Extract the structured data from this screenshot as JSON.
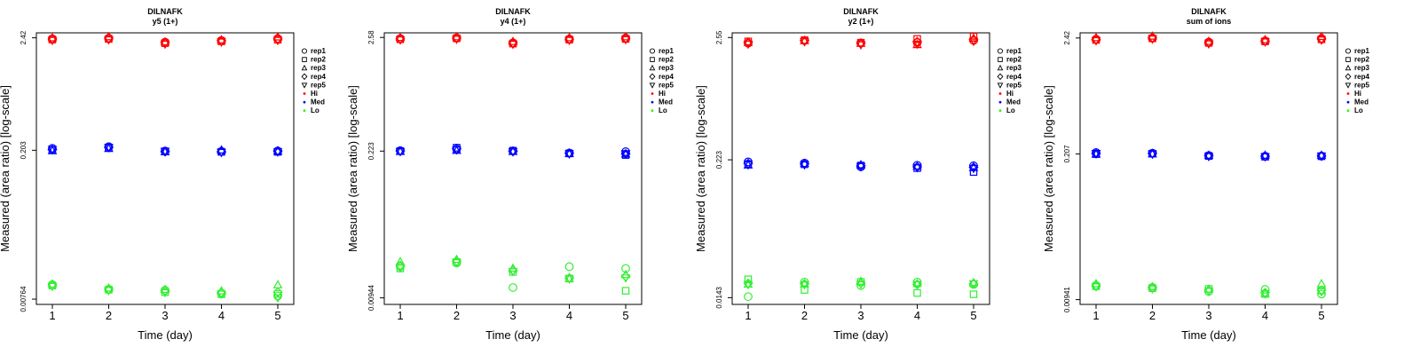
{
  "colors": {
    "Hi": "#ff0000",
    "Med": "#0000ff",
    "Lo": "#33ee33"
  },
  "legend": {
    "markers": [
      {
        "label": "rep1",
        "shape": "circle"
      },
      {
        "label": "rep2",
        "shape": "square"
      },
      {
        "label": "rep3",
        "shape": "triangle-up"
      },
      {
        "label": "rep4",
        "shape": "diamond"
      },
      {
        "label": "rep5",
        "shape": "triangle-down"
      }
    ],
    "levels": [
      "Hi",
      "Med",
      "Lo"
    ]
  },
  "chart_data": [
    {
      "type": "scatter",
      "title": "DILNAFK",
      "subtitle": "y5 (1+)",
      "xlabel": "Time (day)",
      "ylabel": "Measured (area ratio) [log-scale]",
      "x": [
        1,
        2,
        3,
        4,
        5
      ],
      "xtick_labels": [
        "1",
        "2",
        "3",
        "4",
        "5"
      ],
      "ylim": [
        0.0068,
        2.7
      ],
      "yscale": "log",
      "yticks": [
        0.00764,
        0.203,
        2.42
      ],
      "ytick_labels": [
        "0.00764",
        "0.203",
        "2.42"
      ],
      "series": [
        {
          "level": "Hi",
          "rep": "rep1",
          "values": [
            2.37,
            2.4,
            2.2,
            2.28,
            2.38
          ]
        },
        {
          "level": "Hi",
          "rep": "rep2",
          "values": [
            2.33,
            2.36,
            2.15,
            2.24,
            2.32
          ]
        },
        {
          "level": "Hi",
          "rep": "rep3",
          "values": [
            2.4,
            2.46,
            2.2,
            2.3,
            2.45
          ]
        },
        {
          "level": "Hi",
          "rep": "rep4",
          "values": [
            2.35,
            2.4,
            2.18,
            2.27,
            2.36
          ]
        },
        {
          "level": "Hi",
          "rep": "rep5",
          "values": [
            2.3,
            2.33,
            2.12,
            2.22,
            2.3
          ]
        },
        {
          "level": "Med",
          "rep": "rep1",
          "values": [
            0.212,
            0.22,
            0.2,
            0.198,
            0.2
          ]
        },
        {
          "level": "Med",
          "rep": "rep2",
          "values": [
            0.205,
            0.214,
            0.198,
            0.196,
            0.196
          ]
        },
        {
          "level": "Med",
          "rep": "rep3",
          "values": [
            0.2,
            0.21,
            0.195,
            0.203,
            0.198
          ]
        },
        {
          "level": "Med",
          "rep": "rep4",
          "values": [
            0.206,
            0.216,
            0.197,
            0.197,
            0.2
          ]
        },
        {
          "level": "Med",
          "rep": "rep5",
          "values": [
            0.208,
            0.218,
            0.2,
            0.195,
            0.197
          ]
        },
        {
          "level": "Lo",
          "rep": "rep1",
          "values": [
            0.0105,
            0.0095,
            0.0093,
            0.0087,
            0.0082
          ]
        },
        {
          "level": "Lo",
          "rep": "rep2",
          "values": [
            0.0103,
            0.0094,
            0.0089,
            0.0085,
            0.0086
          ]
        },
        {
          "level": "Lo",
          "rep": "rep3",
          "values": [
            0.0106,
            0.0097,
            0.0094,
            0.0091,
            0.0104
          ]
        },
        {
          "level": "Lo",
          "rep": "rep4",
          "values": [
            0.0104,
            0.0095,
            0.0091,
            0.0088,
            0.0089
          ]
        },
        {
          "level": "Lo",
          "rep": "rep5",
          "values": [
            0.0102,
            0.0093,
            0.0089,
            0.0086,
            0.0079
          ]
        }
      ]
    },
    {
      "type": "scatter",
      "title": "DILNAFK",
      "subtitle": "y4 (1+)",
      "xlabel": "Time (day)",
      "ylabel": "Measured (area ratio) [log-scale]",
      "x": [
        1,
        2,
        3,
        4,
        5
      ],
      "xtick_labels": [
        "1",
        "2",
        "3",
        "4",
        "5"
      ],
      "ylim": [
        0.0082,
        2.85
      ],
      "yscale": "log",
      "yticks": [
        0.00944,
        0.223,
        2.58
      ],
      "ytick_labels": [
        "0.00944",
        "0.223",
        "2.58"
      ],
      "series": [
        {
          "level": "Hi",
          "rep": "rep1",
          "values": [
            2.52,
            2.56,
            2.3,
            2.5,
            2.55
          ]
        },
        {
          "level": "Hi",
          "rep": "rep2",
          "values": [
            2.48,
            2.53,
            2.26,
            2.46,
            2.5
          ]
        },
        {
          "level": "Hi",
          "rep": "rep3",
          "values": [
            2.56,
            2.6,
            2.35,
            2.55,
            2.6
          ]
        },
        {
          "level": "Hi",
          "rep": "rep4",
          "values": [
            2.5,
            2.55,
            2.28,
            2.48,
            2.53
          ]
        },
        {
          "level": "Hi",
          "rep": "rep5",
          "values": [
            2.46,
            2.5,
            2.24,
            2.44,
            2.48
          ]
        },
        {
          "level": "Med",
          "rep": "rep1",
          "values": [
            0.225,
            0.232,
            0.224,
            0.214,
            0.22
          ]
        },
        {
          "level": "Med",
          "rep": "rep2",
          "values": [
            0.223,
            0.24,
            0.225,
            0.212,
            0.205
          ]
        },
        {
          "level": "Med",
          "rep": "rep3",
          "values": [
            0.22,
            0.225,
            0.22,
            0.21,
            0.208
          ]
        },
        {
          "level": "Med",
          "rep": "rep4",
          "values": [
            0.224,
            0.235,
            0.222,
            0.213,
            0.21
          ]
        },
        {
          "level": "Med",
          "rep": "rep5",
          "values": [
            0.222,
            0.23,
            0.221,
            0.211,
            0.212
          ]
        },
        {
          "level": "Lo",
          "rep": "rep1",
          "values": [
            0.0185,
            0.02,
            0.0118,
            0.0185,
            0.0178
          ]
        },
        {
          "level": "Lo",
          "rep": "rep2",
          "values": [
            0.0178,
            0.0205,
            0.0165,
            0.0143,
            0.011
          ]
        },
        {
          "level": "Lo",
          "rep": "rep3",
          "values": [
            0.0205,
            0.0215,
            0.0178,
            0.0142,
            0.0155
          ]
        },
        {
          "level": "Lo",
          "rep": "rep4",
          "values": [
            0.019,
            0.0208,
            0.017,
            0.0145,
            0.015
          ]
        },
        {
          "level": "Lo",
          "rep": "rep5",
          "values": [
            0.0182,
            0.0203,
            0.0168,
            0.0143,
            0.0146
          ]
        }
      ]
    },
    {
      "type": "scatter",
      "title": "DILNAFK",
      "subtitle": "y2 (1+)",
      "xlabel": "Time (day)",
      "ylabel": "Measured (area ratio) [log-scale]",
      "x": [
        1,
        2,
        3,
        4,
        5
      ],
      "xtick_labels": [
        "1",
        "2",
        "3",
        "4",
        "5"
      ],
      "ylim": [
        0.0125,
        2.8
      ],
      "yscale": "log",
      "yticks": [
        0.0143,
        0.223,
        2.55
      ],
      "ytick_labels": [
        "0.0143",
        "0.223",
        "2.55"
      ],
      "series": [
        {
          "level": "Hi",
          "rep": "rep1",
          "values": [
            2.28,
            2.4,
            2.28,
            2.3,
            2.4
          ]
        },
        {
          "level": "Hi",
          "rep": "rep2",
          "values": [
            2.36,
            2.42,
            2.3,
            2.48,
            2.6
          ]
        },
        {
          "level": "Hi",
          "rep": "rep3",
          "values": [
            2.3,
            2.38,
            2.26,
            2.2,
            2.5
          ]
        },
        {
          "level": "Hi",
          "rep": "rep4",
          "values": [
            2.32,
            2.4,
            2.28,
            2.35,
            2.45
          ]
        },
        {
          "level": "Hi",
          "rep": "rep5",
          "values": [
            2.25,
            2.36,
            2.22,
            2.25,
            2.38
          ]
        },
        {
          "level": "Med",
          "rep": "rep1",
          "values": [
            0.214,
            0.209,
            0.194,
            0.2,
            0.198
          ]
        },
        {
          "level": "Med",
          "rep": "rep2",
          "values": [
            0.205,
            0.204,
            0.199,
            0.189,
            0.175
          ]
        },
        {
          "level": "Med",
          "rep": "rep3",
          "values": [
            0.2,
            0.206,
            0.201,
            0.195,
            0.19
          ]
        },
        {
          "level": "Med",
          "rep": "rep4",
          "values": [
            0.207,
            0.205,
            0.198,
            0.194,
            0.192
          ]
        },
        {
          "level": "Med",
          "rep": "rep5",
          "values": [
            0.203,
            0.203,
            0.196,
            0.192,
            0.189
          ]
        },
        {
          "level": "Lo",
          "rep": "rep1",
          "values": [
            0.0146,
            0.0195,
            0.0182,
            0.0195,
            0.0186
          ]
        },
        {
          "level": "Lo",
          "rep": "rep2",
          "values": [
            0.0206,
            0.0167,
            0.0196,
            0.0157,
            0.0153
          ]
        },
        {
          "level": "Lo",
          "rep": "rep3",
          "values": [
            0.0186,
            0.0187,
            0.0197,
            0.0188,
            0.0192
          ]
        },
        {
          "level": "Lo",
          "rep": "rep4",
          "values": [
            0.019,
            0.0188,
            0.019,
            0.0186,
            0.0188
          ]
        },
        {
          "level": "Lo",
          "rep": "rep5",
          "values": [
            0.0187,
            0.0186,
            0.0188,
            0.0187,
            0.019
          ]
        }
      ]
    },
    {
      "type": "scatter",
      "title": "DILNAFK",
      "subtitle": "sum of ions",
      "xlabel": "Time (day)",
      "ylabel": "Measured (area ratio) [log-scale]",
      "x": [
        1,
        2,
        3,
        4,
        5
      ],
      "xtick_labels": [
        "1",
        "2",
        "3",
        "4",
        "5"
      ],
      "ylim": [
        0.0085,
        2.7
      ],
      "yscale": "log",
      "yticks": [
        0.00941,
        0.207,
        2.42
      ],
      "ytick_labels": [
        "0.00941",
        "0.207",
        "2.42"
      ],
      "series": [
        {
          "level": "Hi",
          "rep": "rep1",
          "values": [
            2.36,
            2.42,
            2.22,
            2.28,
            2.4
          ]
        },
        {
          "level": "Hi",
          "rep": "rep2",
          "values": [
            2.32,
            2.4,
            2.18,
            2.25,
            2.35
          ]
        },
        {
          "level": "Hi",
          "rep": "rep3",
          "values": [
            2.42,
            2.5,
            2.24,
            2.32,
            2.48
          ]
        },
        {
          "level": "Hi",
          "rep": "rep4",
          "values": [
            2.35,
            2.43,
            2.2,
            2.27,
            2.38
          ]
        },
        {
          "level": "Hi",
          "rep": "rep5",
          "values": [
            2.3,
            2.38,
            2.15,
            2.24,
            2.33
          ]
        },
        {
          "level": "Med",
          "rep": "rep1",
          "values": [
            0.213,
            0.21,
            0.2,
            0.197,
            0.198
          ]
        },
        {
          "level": "Med",
          "rep": "rep2",
          "values": [
            0.206,
            0.208,
            0.198,
            0.195,
            0.197
          ]
        },
        {
          "level": "Med",
          "rep": "rep3",
          "values": [
            0.205,
            0.206,
            0.2,
            0.2,
            0.2
          ]
        },
        {
          "level": "Med",
          "rep": "rep4",
          "values": [
            0.208,
            0.209,
            0.199,
            0.197,
            0.198
          ]
        },
        {
          "level": "Med",
          "rep": "rep5",
          "values": [
            0.21,
            0.207,
            0.197,
            0.196,
            0.199
          ]
        },
        {
          "level": "Lo",
          "rep": "rep1",
          "values": [
            0.0127,
            0.0122,
            0.0112,
            0.0117,
            0.0106
          ]
        },
        {
          "level": "Lo",
          "rep": "rep2",
          "values": [
            0.0125,
            0.012,
            0.0118,
            0.0106,
            0.0114
          ]
        },
        {
          "level": "Lo",
          "rep": "rep3",
          "values": [
            0.0131,
            0.0123,
            0.0117,
            0.0107,
            0.0131
          ]
        },
        {
          "level": "Lo",
          "rep": "rep4",
          "values": [
            0.0126,
            0.0121,
            0.0115,
            0.0109,
            0.0115
          ]
        },
        {
          "level": "Lo",
          "rep": "rep5",
          "values": [
            0.0124,
            0.0119,
            0.0113,
            0.0107,
            0.0112
          ]
        }
      ]
    }
  ]
}
